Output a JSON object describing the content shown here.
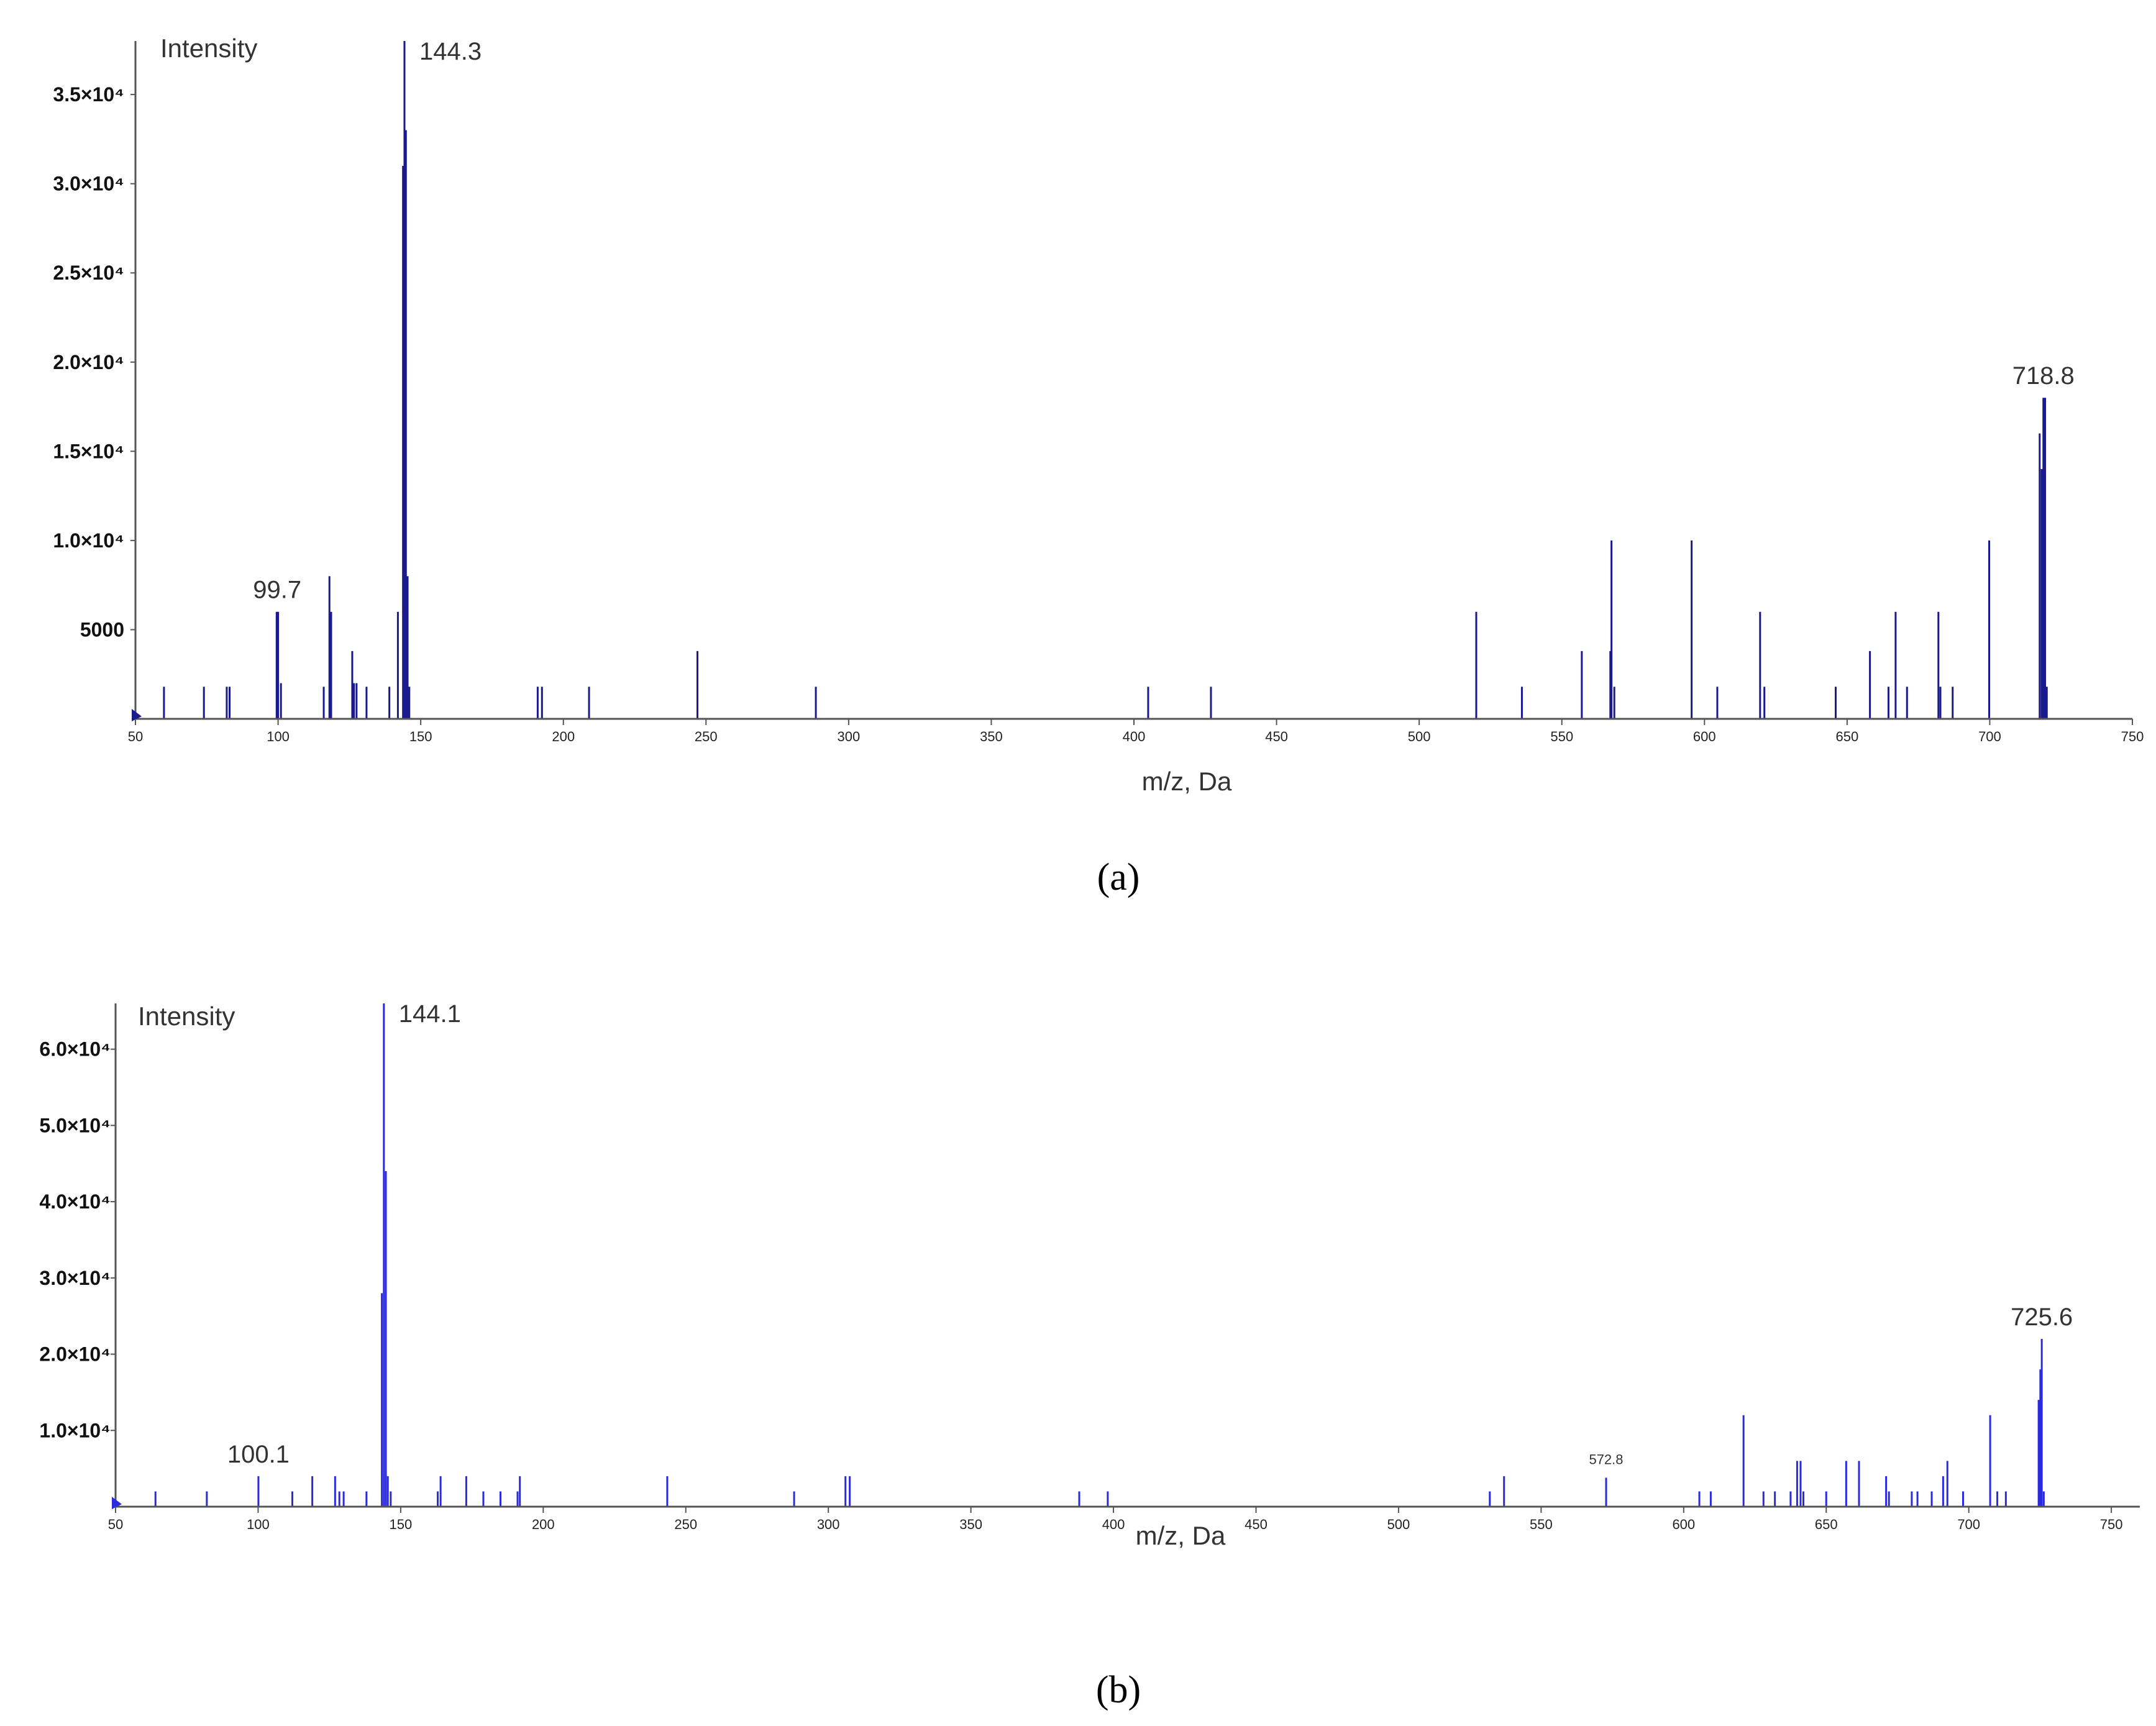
{
  "chart_data": [
    {
      "type": "bar",
      "panel_label": "(a)",
      "ylabel": "Intensity",
      "xlabel": "m/z, Da",
      "xlim": [
        50,
        750
      ],
      "ylim": [
        0,
        38000
      ],
      "x_ticks": [
        50,
        100,
        150,
        200,
        250,
        300,
        350,
        400,
        450,
        500,
        550,
        600,
        650,
        700,
        750
      ],
      "y_ticks": [
        {
          "value": 5000,
          "label": "5000"
        },
        {
          "value": 10000,
          "label": "1.0×10⁴"
        },
        {
          "value": 15000,
          "label": "1.5×10⁴"
        },
        {
          "value": 20000,
          "label": "2.0×10⁴"
        },
        {
          "value": 25000,
          "label": "2.5×10⁴"
        },
        {
          "value": 30000,
          "label": "3.0×10⁴"
        },
        {
          "value": 35000,
          "label": "3.5×10⁴"
        }
      ],
      "peak_labels": [
        {
          "x": 99.7,
          "y": 6000,
          "label": "99.7"
        },
        {
          "x": 144.3,
          "y": 38000,
          "label": "144.3"
        },
        {
          "x": 718.8,
          "y": 18000,
          "label": "718.8"
        }
      ],
      "points": [
        [
          60,
          1800
        ],
        [
          74,
          1800
        ],
        [
          82,
          1800
        ],
        [
          83,
          1800
        ],
        [
          99.5,
          6000
        ],
        [
          100,
          6000
        ],
        [
          101,
          2000
        ],
        [
          116,
          1800
        ],
        [
          118,
          8000
        ],
        [
          118.6,
          6000
        ],
        [
          126,
          3800
        ],
        [
          126.6,
          2000
        ],
        [
          127.5,
          2000
        ],
        [
          131,
          1800
        ],
        [
          139,
          1800
        ],
        [
          142,
          6000
        ],
        [
          143.8,
          31000
        ],
        [
          144.3,
          38000
        ],
        [
          144.8,
          33000
        ],
        [
          145.4,
          8000
        ],
        [
          146,
          1800
        ],
        [
          191,
          1800
        ],
        [
          192.5,
          1800
        ],
        [
          209,
          1800
        ],
        [
          247,
          3800
        ],
        [
          288.5,
          1800
        ],
        [
          405,
          1800
        ],
        [
          427,
          1800
        ],
        [
          520,
          6000
        ],
        [
          536,
          1800
        ],
        [
          557,
          3800
        ],
        [
          567,
          3800
        ],
        [
          567.4,
          10000
        ],
        [
          568.4,
          1800
        ],
        [
          595.5,
          10000
        ],
        [
          604.5,
          1800
        ],
        [
          619.5,
          6000
        ],
        [
          621,
          1800
        ],
        [
          646,
          1800
        ],
        [
          658,
          3800
        ],
        [
          664.5,
          1800
        ],
        [
          667,
          6000
        ],
        [
          671,
          1800
        ],
        [
          682,
          6000
        ],
        [
          682.7,
          1800
        ],
        [
          687,
          1800
        ],
        [
          699.8,
          10000
        ],
        [
          717.5,
          16000
        ],
        [
          718.2,
          14000
        ],
        [
          718.8,
          18000
        ],
        [
          719.4,
          18000
        ],
        [
          720,
          1800
        ]
      ]
    },
    {
      "type": "bar",
      "panel_label": "(b)",
      "ylabel": "Intensity",
      "xlabel": "m/z, Da",
      "xlim": [
        50,
        760
      ],
      "ylim": [
        0,
        66000
      ],
      "x_ticks": [
        50,
        100,
        150,
        200,
        250,
        300,
        350,
        400,
        450,
        500,
        550,
        600,
        650,
        700,
        750
      ],
      "y_ticks": [
        {
          "value": 10000,
          "label": "1.0×10⁴"
        },
        {
          "value": 20000,
          "label": "2.0×10⁴"
        },
        {
          "value": 30000,
          "label": "3.0×10⁴"
        },
        {
          "value": 40000,
          "label": "4.0×10⁴"
        },
        {
          "value": 50000,
          "label": "5.0×10⁴"
        },
        {
          "value": 60000,
          "label": "6.0×10⁴"
        }
      ],
      "peak_labels": [
        {
          "x": 100.1,
          "y": 4000,
          "label": "100.1",
          "size": "large"
        },
        {
          "x": 144.1,
          "y": 66000,
          "label": "144.1",
          "size": "large"
        },
        {
          "x": 572.8,
          "y": 3800,
          "label": "572.8",
          "size": "small"
        },
        {
          "x": 725.6,
          "y": 22000,
          "label": "725.6",
          "size": "large"
        }
      ],
      "points": [
        [
          64,
          2000
        ],
        [
          82,
          2000
        ],
        [
          100.1,
          4000
        ],
        [
          112,
          2000
        ],
        [
          119,
          4000
        ],
        [
          127,
          4000
        ],
        [
          128.5,
          2000
        ],
        [
          130,
          2000
        ],
        [
          138,
          2000
        ],
        [
          143.4,
          28000
        ],
        [
          144.1,
          66000
        ],
        [
          144.8,
          44000
        ],
        [
          145.5,
          4000
        ],
        [
          146.5,
          2000
        ],
        [
          163,
          2000
        ],
        [
          164,
          4000
        ],
        [
          173,
          4000
        ],
        [
          179,
          2000
        ],
        [
          185,
          2000
        ],
        [
          191,
          2000
        ],
        [
          191.8,
          4000
        ],
        [
          243.5,
          4000
        ],
        [
          288,
          2000
        ],
        [
          306,
          4000
        ],
        [
          307.5,
          4000
        ],
        [
          388,
          2000
        ],
        [
          398,
          2000
        ],
        [
          532,
          2000
        ],
        [
          537,
          4000
        ],
        [
          572.8,
          3800
        ],
        [
          605.5,
          2000
        ],
        [
          609.5,
          2000
        ],
        [
          621,
          12000
        ],
        [
          628,
          2000
        ],
        [
          632,
          2000
        ],
        [
          637.5,
          2000
        ],
        [
          639.8,
          6000
        ],
        [
          641,
          6000
        ],
        [
          642,
          2000
        ],
        [
          650,
          2000
        ],
        [
          657,
          6000
        ],
        [
          661.5,
          6000
        ],
        [
          671,
          4000
        ],
        [
          672,
          2000
        ],
        [
          680,
          2000
        ],
        [
          682,
          2000
        ],
        [
          687,
          2000
        ],
        [
          691,
          4000
        ],
        [
          692.5,
          6000
        ],
        [
          698,
          2000
        ],
        [
          707.5,
          12000
        ],
        [
          710,
          2000
        ],
        [
          713,
          2000
        ],
        [
          724.5,
          14000
        ],
        [
          725.1,
          18000
        ],
        [
          725.6,
          22000
        ],
        [
          726.3,
          2000
        ]
      ]
    }
  ]
}
